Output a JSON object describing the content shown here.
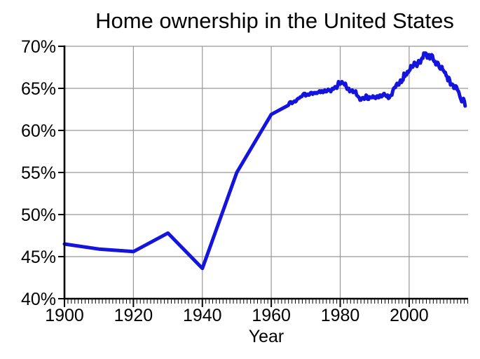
{
  "chart_data": {
    "type": "line",
    "title": "Home ownership in the United States",
    "xlabel": "Year",
    "ylabel": "",
    "xlim": [
      1900,
      2017.1
    ],
    "ylim": [
      40,
      70
    ],
    "grid": true,
    "legend_position": "none",
    "line_color": "#1414dd",
    "grid_color": "#979797",
    "axis_color": "#000000",
    "background_color": "#ffffff",
    "x_minor_tick_step": 1,
    "x_ticks": [
      {
        "value": 1900,
        "label": "1900"
      },
      {
        "value": 1920,
        "label": "1920"
      },
      {
        "value": 1940,
        "label": "1940"
      },
      {
        "value": 1960,
        "label": "1960"
      },
      {
        "value": 1980,
        "label": "1980"
      },
      {
        "value": 2000,
        "label": "2000"
      }
    ],
    "y_ticks": [
      {
        "value": 40,
        "label": "40%"
      },
      {
        "value": 45,
        "label": "45%"
      },
      {
        "value": 50,
        "label": "50%"
      },
      {
        "value": 55,
        "label": "55%"
      },
      {
        "value": 60,
        "label": "60%"
      },
      {
        "value": 65,
        "label": "65%"
      },
      {
        "value": 70,
        "label": "70%"
      }
    ],
    "series": [
      {
        "census_points": [
          [
            1900,
            46.5
          ],
          [
            1910,
            45.9
          ],
          [
            1920,
            45.6
          ],
          [
            1930,
            47.8
          ],
          [
            1940,
            43.6
          ],
          [
            1950,
            55.0
          ],
          [
            1960,
            61.9
          ]
        ],
        "quarterly": {
          "start_x": 1965.0,
          "step": 0.25,
          "values": [
            63.0,
            63.3,
            63.4,
            63.4,
            63.2,
            63.3,
            63.4,
            63.5,
            63.4,
            63.5,
            63.7,
            63.8,
            63.8,
            63.9,
            64.0,
            64.0,
            64.1,
            64.3,
            64.4,
            64.4,
            64.1,
            64.2,
            64.3,
            64.2,
            64.2,
            64.4,
            64.5,
            64.5,
            64.3,
            64.4,
            64.5,
            64.4,
            64.5,
            64.4,
            64.5,
            64.6,
            64.7,
            64.5,
            64.7,
            64.7,
            64.5,
            64.6,
            64.8,
            64.6,
            64.6,
            64.7,
            64.9,
            64.8,
            64.8,
            64.6,
            64.8,
            65.0,
            64.9,
            65.0,
            65.2,
            65.1,
            65.0,
            65.3,
            65.8,
            65.5,
            65.5,
            65.6,
            65.8,
            65.6,
            65.6,
            65.4,
            65.6,
            65.2,
            64.9,
            64.9,
            65.0,
            64.6,
            64.7,
            64.7,
            64.8,
            64.5,
            64.6,
            64.6,
            64.7,
            64.2,
            64.1,
            64.0,
            63.9,
            63.6,
            63.6,
            63.8,
            63.9,
            63.9,
            63.7,
            63.8,
            64.2,
            64.1,
            63.7,
            63.7,
            64.0,
            63.9,
            63.9,
            63.9,
            64.1,
            63.9,
            64.0,
            63.8,
            64.0,
            64.1,
            63.9,
            63.9,
            64.2,
            64.2,
            64.0,
            64.1,
            64.3,
            64.4,
            64.2,
            64.1,
            64.0,
            64.2,
            63.8,
            63.9,
            64.1,
            64.2,
            64.2,
            64.7,
            65.0,
            65.1,
            65.1,
            65.4,
            65.6,
            65.4,
            65.4,
            65.7,
            66.0,
            65.7,
            65.9,
            66.0,
            66.8,
            66.4,
            66.7,
            66.6,
            67.0,
            66.9,
            67.1,
            67.2,
            67.7,
            67.5,
            67.5,
            67.7,
            68.1,
            68.0,
            67.8,
            67.6,
            68.0,
            68.3,
            68.0,
            68.0,
            68.4,
            68.6,
            68.6,
            69.2,
            69.0,
            69.2,
            69.1,
            68.6,
            68.8,
            69.0,
            68.5,
            68.7,
            69.0,
            68.9,
            68.4,
            68.2,
            68.2,
            67.8,
            67.8,
            68.1,
            67.9,
            67.5,
            67.3,
            67.4,
            67.6,
            67.2,
            67.1,
            66.9,
            66.9,
            66.5,
            66.4,
            65.9,
            66.3,
            66.0,
            65.4,
            65.5,
            65.5,
            65.4,
            65.0,
            65.0,
            65.3,
            65.2,
            64.8,
            64.7,
            64.4,
            64.0,
            63.7,
            63.4,
            63.7,
            63.8,
            63.5,
            62.9
          ]
        }
      }
    ]
  }
}
